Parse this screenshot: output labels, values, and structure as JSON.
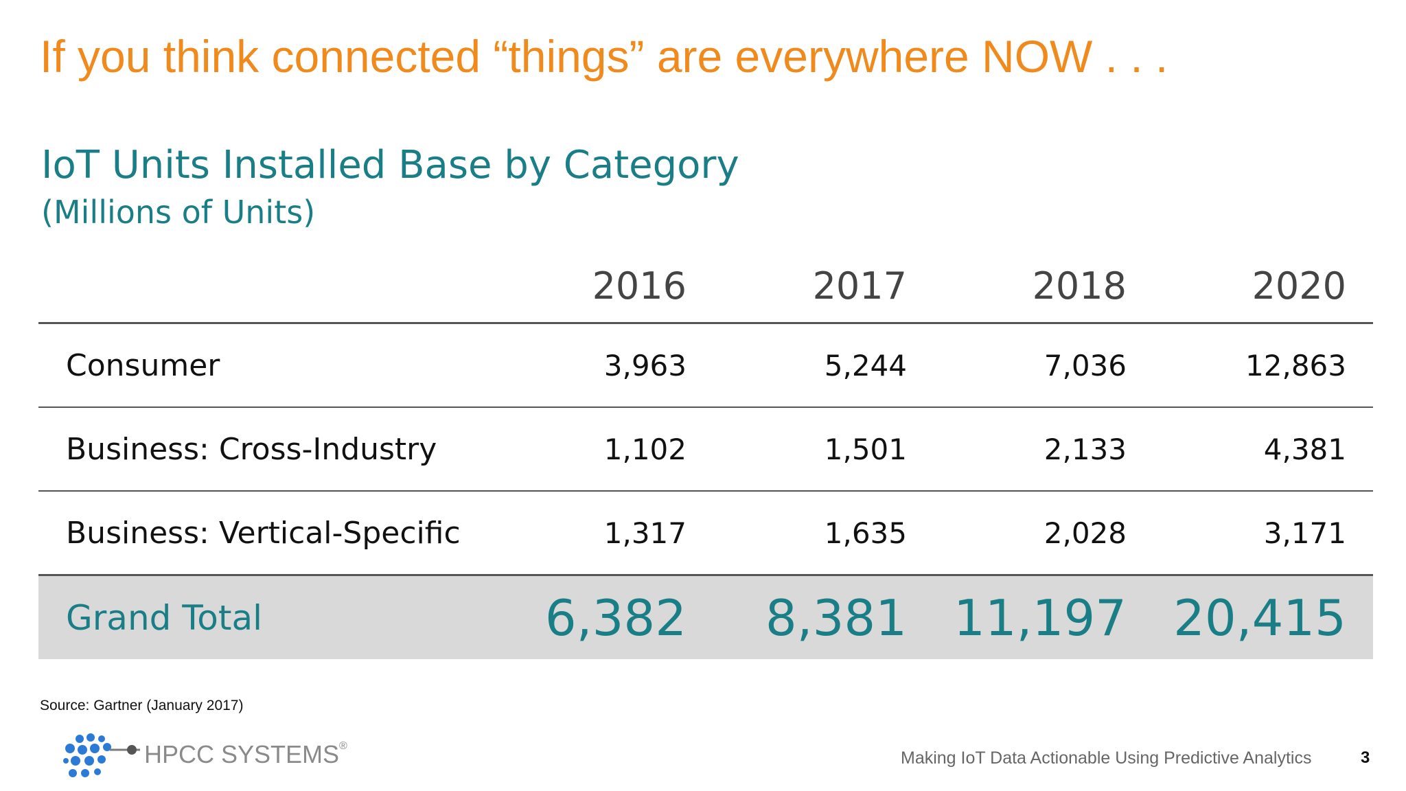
{
  "slide": {
    "headline": "If you think connected “things” are everywhere NOW . . .",
    "table_title": "IoT Units Installed Base by Category",
    "table_subtitle": "(Millions of Units)",
    "years": [
      "2016",
      "2017",
      "2018",
      "2020"
    ],
    "rows": [
      {
        "category": "Consumer",
        "values": [
          "3,963",
          "5,244",
          "7,036",
          "12,863"
        ]
      },
      {
        "category": "Business: Cross-Industry",
        "values": [
          "1,102",
          "1,501",
          "2,133",
          "4,381"
        ]
      },
      {
        "category": "Business: Vertical-Specific",
        "values": [
          "1,317",
          "1,635",
          "2,028",
          "3,171"
        ]
      }
    ],
    "total": {
      "category": "Grand Total",
      "values": [
        "6,382",
        "8,381",
        "11,197",
        "20,415"
      ]
    },
    "source": "Source: Gartner (January 2017)",
    "logo_text": "HPCC SYSTEMS",
    "logo_mark": "®",
    "footer": "Making IoT Data Actionable Using Predictive Analytics",
    "page_number": "3"
  },
  "colors": {
    "headline": "#F08A1C",
    "accent_teal": "#1A7E86",
    "total_row_bg": "#D9D9D9",
    "logo_blue": "#2B7BD6"
  }
}
